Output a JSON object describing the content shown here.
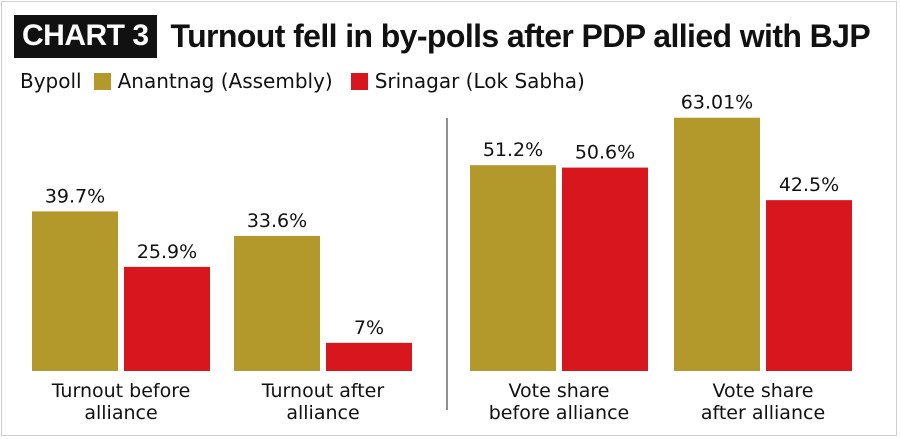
{
  "header": {
    "tag": "CHART 3",
    "title": "Turnout fell in by-polls after PDP allied with BJP"
  },
  "legend": {
    "label": "Bypoll",
    "items": [
      {
        "name": "Anantnag (Assembly)",
        "color": "#b3992b"
      },
      {
        "name": "Srinagar (Lok Sabha)",
        "color": "#d8161e"
      }
    ]
  },
  "chart_data": {
    "type": "bar",
    "title": "Turnout fell in by-polls after PDP allied with BJP",
    "legend_title": "Bypoll",
    "series": [
      {
        "name": "Anantnag (Assembly)",
        "color": "#b3992b"
      },
      {
        "name": "Srinagar (Lok Sabha)",
        "color": "#d8161e"
      }
    ],
    "panels": [
      {
        "categories": [
          "Turnout before alliance",
          "Turnout after alliance"
        ],
        "category_lines": [
          [
            "Turnout before",
            "alliance"
          ],
          [
            "Turnout after",
            "alliance"
          ]
        ],
        "values": [
          [
            39.7,
            25.9
          ],
          [
            33.6,
            7
          ]
        ],
        "labels": [
          [
            "39.7%",
            "25.9%"
          ],
          [
            "33.6%",
            "7%"
          ]
        ]
      },
      {
        "categories": [
          "Vote share before alliance",
          "Vote share after alliance"
        ],
        "category_lines": [
          [
            "Vote share",
            "before alliance"
          ],
          [
            "Vote share",
            "after alliance"
          ]
        ],
        "values": [
          [
            51.2,
            50.6
          ],
          [
            63.01,
            42.5
          ]
        ],
        "labels": [
          [
            "51.2%",
            "50.6%"
          ],
          [
            "63.01%",
            "42.5%"
          ]
        ]
      }
    ],
    "unit": "%",
    "grid": false,
    "legend_position": "top-left"
  }
}
